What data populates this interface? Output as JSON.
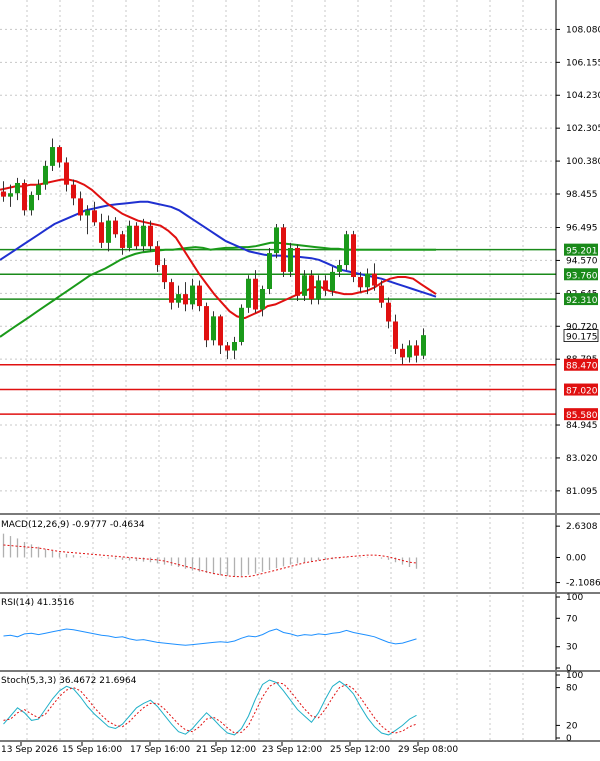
{
  "chart_data": [
    {
      "type": "candlestick",
      "title": "",
      "y_axis_ticks": [
        "108.080",
        "106.155",
        "104.230",
        "102.305",
        "100.380",
        "98.455",
        "96.495",
        "94.570",
        "92.645",
        "90.720",
        "88.795",
        "84.945",
        "83.020",
        "81.095"
      ],
      "ylim": [
        79.8,
        109.8
      ],
      "current_price": "90.175",
      "x_ticks": [
        "13 Sep 2026",
        "15 Sep 16:00",
        "17 Sep 16:00",
        "21 Sep 12:00",
        "23 Sep 12:00",
        "25 Sep 12:00",
        "29 Sep 08:00"
      ],
      "resistance_levels": [
        "95.201",
        "93.760",
        "92.310"
      ],
      "support_levels": [
        "88.470",
        "87.020",
        "85.580"
      ],
      "level_colors": {
        "resistance": "#1a8a1a",
        "support": "#e01010"
      },
      "series": [
        {
          "name": "",
          "color": "#e01010",
          "description": "fast moving average"
        },
        {
          "name": "",
          "color": "#1f30d0",
          "description": "medium moving average"
        },
        {
          "name": "",
          "color": "#1a9a1a",
          "description": "slow moving average"
        }
      ],
      "candles": [
        [
          98.6,
          99.2,
          98.0,
          98.3
        ],
        [
          98.3,
          99.0,
          97.7,
          98.5
        ],
        [
          98.5,
          99.4,
          98.1,
          99.1
        ],
        [
          99.1,
          99.3,
          97.2,
          97.5
        ],
        [
          97.5,
          98.6,
          97.2,
          98.4
        ],
        [
          98.4,
          99.3,
          98.1,
          99.0
        ],
        [
          99.0,
          100.4,
          98.7,
          100.1
        ],
        [
          100.1,
          101.7,
          99.8,
          101.2
        ],
        [
          101.2,
          101.3,
          100.0,
          100.3
        ],
        [
          100.3,
          100.6,
          98.6,
          99.0
        ],
        [
          99.0,
          99.3,
          97.8,
          98.2
        ],
        [
          98.2,
          98.6,
          96.9,
          97.2
        ],
        [
          97.2,
          97.8,
          96.1,
          97.5
        ],
        [
          97.5,
          98.0,
          96.6,
          96.8
        ],
        [
          96.8,
          97.3,
          95.3,
          95.6
        ],
        [
          95.6,
          97.2,
          95.1,
          96.9
        ],
        [
          96.9,
          97.1,
          95.9,
          96.1
        ],
        [
          96.1,
          96.3,
          94.9,
          95.3
        ],
        [
          95.3,
          96.9,
          95.1,
          96.6
        ],
        [
          96.6,
          96.8,
          95.2,
          95.4
        ],
        [
          95.4,
          97.0,
          95.1,
          96.6
        ],
        [
          96.6,
          96.9,
          95.1,
          95.4
        ],
        [
          95.4,
          95.7,
          93.9,
          94.3
        ],
        [
          94.3,
          94.7,
          92.9,
          93.3
        ],
        [
          93.3,
          93.5,
          91.7,
          92.1
        ],
        [
          92.1,
          93.1,
          91.8,
          92.6
        ],
        [
          92.6,
          93.3,
          91.6,
          92.0
        ],
        [
          92.0,
          93.5,
          91.7,
          93.1
        ],
        [
          93.1,
          93.4,
          91.6,
          91.9
        ],
        [
          91.9,
          92.1,
          89.5,
          89.9
        ],
        [
          89.9,
          91.6,
          89.6,
          91.3
        ],
        [
          91.3,
          91.4,
          89.1,
          89.6
        ],
        [
          89.6,
          89.8,
          88.8,
          89.3
        ],
        [
          89.3,
          90.1,
          88.8,
          89.8
        ],
        [
          89.8,
          92.0,
          89.6,
          91.8
        ],
        [
          91.8,
          93.7,
          91.5,
          93.5
        ],
        [
          93.5,
          94.0,
          91.5,
          91.7
        ],
        [
          91.7,
          93.1,
          91.3,
          92.9
        ],
        [
          92.9,
          95.3,
          92.6,
          95.0
        ],
        [
          95.0,
          96.7,
          94.7,
          96.5
        ],
        [
          96.5,
          96.7,
          93.6,
          93.9
        ],
        [
          93.9,
          95.6,
          93.6,
          95.3
        ],
        [
          95.3,
          95.5,
          92.2,
          92.5
        ],
        [
          92.5,
          94.0,
          92.2,
          93.7
        ],
        [
          93.7,
          94.0,
          92.0,
          92.3
        ],
        [
          92.3,
          93.7,
          92.0,
          93.4
        ],
        [
          93.4,
          93.7,
          92.5,
          92.8
        ],
        [
          92.8,
          94.2,
          92.5,
          93.9
        ],
        [
          93.9,
          94.6,
          93.6,
          94.3
        ],
        [
          94.3,
          96.3,
          94.0,
          96.1
        ],
        [
          96.1,
          96.3,
          93.3,
          93.6
        ],
        [
          93.6,
          93.9,
          92.7,
          93.0
        ],
        [
          93.0,
          94.1,
          92.6,
          93.8
        ],
        [
          93.8,
          94.4,
          92.8,
          93.1
        ],
        [
          93.1,
          93.4,
          91.8,
          92.1
        ],
        [
          92.1,
          92.4,
          90.6,
          91.0
        ],
        [
          91.0,
          91.4,
          89.1,
          89.4
        ],
        [
          89.4,
          89.7,
          88.5,
          88.9
        ],
        [
          88.9,
          89.9,
          88.6,
          89.6
        ],
        [
          89.6,
          89.9,
          88.6,
          89.0
        ],
        [
          89.0,
          90.6,
          88.8,
          90.2
        ]
      ],
      "ma_fast": [
        98.7,
        98.8,
        98.9,
        98.9,
        99.0,
        99.0,
        99.1,
        99.2,
        99.3,
        99.3,
        99.2,
        99.0,
        98.7,
        98.3,
        97.9,
        97.6,
        97.3,
        97.1,
        96.9,
        96.8,
        96.7,
        96.6,
        96.3,
        95.9,
        95.2,
        94.5,
        93.8,
        93.2,
        92.6,
        92.1,
        91.6,
        91.3,
        91.2,
        91.4,
        91.6,
        91.9,
        92.0,
        92.2,
        92.4,
        92.6,
        92.8,
        93.0,
        93.0,
        92.8,
        92.7,
        92.6,
        92.6,
        92.7,
        92.8,
        93.0,
        93.3,
        93.5,
        93.6,
        93.6,
        93.5,
        93.2,
        92.9,
        92.6
      ],
      "ma_mid": [
        94.6,
        94.9,
        95.2,
        95.5,
        95.8,
        96.1,
        96.4,
        96.7,
        96.9,
        97.1,
        97.3,
        97.5,
        97.6,
        97.7,
        97.8,
        97.85,
        97.9,
        97.95,
        98.0,
        98.0,
        97.9,
        97.8,
        97.7,
        97.5,
        97.2,
        96.9,
        96.6,
        96.3,
        96.0,
        95.7,
        95.5,
        95.3,
        95.1,
        95.0,
        94.9,
        94.85,
        94.85,
        94.8,
        94.8,
        94.75,
        94.7,
        94.6,
        94.4,
        94.2,
        94.0,
        93.9,
        93.8,
        93.7,
        93.6,
        93.5,
        93.35,
        93.2,
        93.05,
        92.9,
        92.75,
        92.6,
        92.45
      ],
      "ma_slow": [
        90.1,
        90.4,
        90.7,
        91.0,
        91.3,
        91.6,
        91.9,
        92.2,
        92.5,
        92.8,
        93.1,
        93.4,
        93.7,
        93.9,
        94.1,
        94.35,
        94.6,
        94.8,
        94.95,
        95.05,
        95.1,
        95.15,
        95.2,
        95.2,
        95.25,
        95.3,
        95.35,
        95.3,
        95.2,
        95.25,
        95.3,
        95.3,
        95.35,
        95.35,
        95.4,
        95.5,
        95.6,
        95.6,
        95.55,
        95.5,
        95.45,
        95.4,
        95.35,
        95.3,
        95.25,
        95.25,
        95.2,
        95.2,
        95.2,
        95.2,
        95.2,
        95.2,
        95.2,
        95.2,
        95.2,
        95.2,
        95.2,
        95.2,
        95.2
      ]
    },
    {
      "type": "histogram",
      "label": "MACD(12,26,9) -0.9777 -0.4634",
      "y_axis_ticks": [
        "2.6308",
        "0.00",
        "-2.1086"
      ],
      "ylim": [
        -2.9,
        3.4
      ],
      "histogram": [
        2.0,
        1.8,
        1.6,
        1.3,
        1.1,
        0.9,
        0.7,
        0.55,
        0.4,
        0.3,
        0.2,
        0.1,
        0.05,
        0.0,
        -0.05,
        -0.1,
        -0.15,
        -0.2,
        -0.25,
        -0.3,
        -0.35,
        -0.4,
        -0.5,
        -0.6,
        -0.7,
        -0.8,
        -0.95,
        -1.1,
        -1.2,
        -1.3,
        -1.4,
        -1.5,
        -1.55,
        -1.6,
        -1.55,
        -1.45,
        -1.35,
        -1.2,
        -1.05,
        -0.9,
        -0.75,
        -0.6,
        -0.5,
        -0.4,
        -0.3,
        -0.25,
        -0.2,
        -0.15,
        -0.1,
        -0.05,
        0.0,
        0.05,
        0.05,
        0.0,
        -0.1,
        -0.2,
        -0.4,
        -0.6,
        -0.8,
        -0.95
      ],
      "signal": [
        1.05,
        1.0,
        0.95,
        0.9,
        0.85,
        0.8,
        0.7,
        0.6,
        0.5,
        0.45,
        0.4,
        0.35,
        0.3,
        0.25,
        0.2,
        0.15,
        0.1,
        0.05,
        0.0,
        -0.05,
        -0.1,
        -0.15,
        -0.2,
        -0.3,
        -0.45,
        -0.6,
        -0.75,
        -0.9,
        -1.05,
        -1.2,
        -1.35,
        -1.45,
        -1.55,
        -1.6,
        -1.62,
        -1.6,
        -1.5,
        -1.35,
        -1.2,
        -1.05,
        -0.9,
        -0.75,
        -0.6,
        -0.45,
        -0.35,
        -0.25,
        -0.15,
        -0.05,
        0.0,
        0.05,
        0.1,
        0.15,
        0.2,
        0.2,
        0.15,
        0.05,
        -0.1,
        -0.25,
        -0.4,
        -0.46
      ],
      "colors": {
        "histogram": "#b0b0b0",
        "signal": "#e01010"
      }
    },
    {
      "type": "line",
      "label": "RSI(14) 41.3516",
      "y_axis_ticks": [
        "100",
        "70",
        "30",
        "0"
      ],
      "ylim": [
        0,
        100
      ],
      "values": [
        45,
        46,
        44,
        48,
        49,
        47,
        49,
        51,
        53,
        55,
        54,
        52,
        50,
        48,
        46,
        45,
        43,
        44,
        41,
        39,
        40,
        38,
        36,
        35,
        34,
        33,
        32,
        33,
        34,
        35,
        36,
        37,
        36,
        38,
        42,
        45,
        44,
        47,
        52,
        55,
        50,
        48,
        45,
        47,
        46,
        48,
        47,
        49,
        50,
        53,
        50,
        48,
        46,
        44,
        40,
        36,
        34,
        35,
        38,
        41
      ],
      "color": "#1e90ff"
    },
    {
      "type": "line",
      "label": "Stoch(5,3,3) 36.4672 21.6964",
      "y_axis_ticks": [
        "100",
        "80",
        "20",
        "0"
      ],
      "ylim": [
        0,
        100
      ],
      "series": [
        {
          "name": "",
          "color": "#20b0c8",
          "values": [
            22,
            35,
            48,
            40,
            28,
            30,
            46,
            62,
            75,
            82,
            78,
            65,
            50,
            38,
            28,
            18,
            15,
            22,
            35,
            48,
            55,
            60,
            50,
            36,
            22,
            10,
            6,
            15,
            28,
            40,
            30,
            18,
            8,
            5,
            15,
            35,
            62,
            85,
            92,
            88,
            75,
            60,
            45,
            35,
            25,
            40,
            62,
            82,
            90,
            82,
            70,
            50,
            32,
            18,
            8,
            5,
            12,
            20,
            30,
            36
          ]
        },
        {
          "name": "",
          "color": "#e01010",
          "dashed": true,
          "values": [
            28,
            30,
            40,
            45,
            38,
            32,
            38,
            52,
            66,
            76,
            80,
            75,
            62,
            48,
            36,
            26,
            20,
            18,
            26,
            38,
            48,
            55,
            55,
            46,
            34,
            22,
            13,
            10,
            18,
            30,
            33,
            26,
            16,
            8,
            9,
            20,
            42,
            65,
            82,
            88,
            86,
            74,
            60,
            46,
            35,
            32,
            46,
            64,
            80,
            85,
            78,
            64,
            48,
            32,
            19,
            10,
            8,
            11,
            18,
            22
          ]
        }
      ],
      "colors": {
        "k": "#20b0c8",
        "d": "#e01010"
      }
    }
  ]
}
